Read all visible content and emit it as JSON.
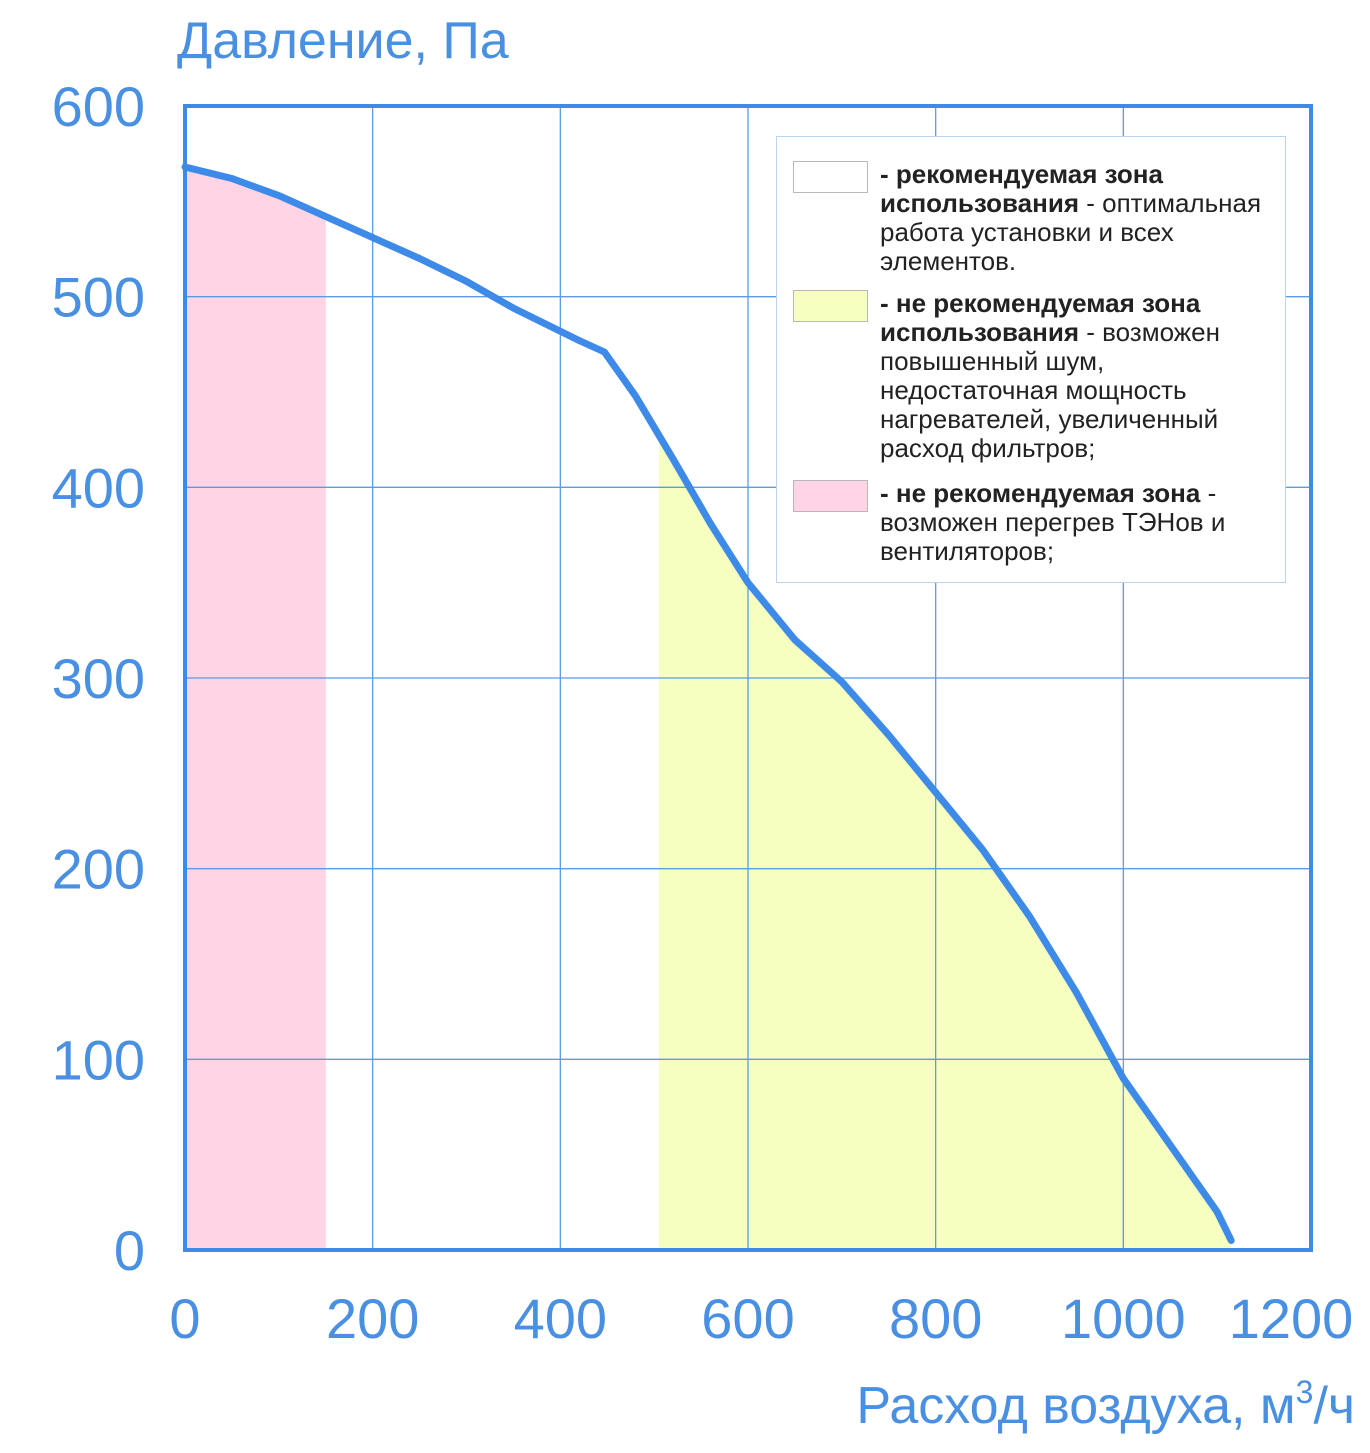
{
  "chart_data": {
    "type": "line",
    "title": "",
    "ylabel": "Давление, Па",
    "xlabel_main": "Расход воздуха, м",
    "xlabel_sup": "3",
    "xlabel_tail": "/ч",
    "xlim": [
      0,
      1200
    ],
    "ylim": [
      0,
      600
    ],
    "grid": true,
    "x_ticks": [
      "0",
      "200",
      "400",
      "600",
      "800",
      "1000",
      "1200"
    ],
    "y_ticks": [
      "0",
      "100",
      "200",
      "300",
      "400",
      "500",
      "600"
    ],
    "series": [
      {
        "x": [
          0,
          50,
          100,
          150,
          200,
          250,
          300,
          350,
          420,
          447,
          480,
          520,
          560,
          600,
          650,
          700,
          750,
          800,
          850,
          900,
          950,
          1000,
          1050,
          1100,
          1115
        ],
        "y": [
          568,
          562,
          553,
          542,
          531,
          520,
          508,
          494,
          477,
          471,
          448,
          415,
          381,
          350,
          320,
          298,
          270,
          240,
          210,
          175,
          135,
          90,
          55,
          20,
          5
        ]
      }
    ],
    "zones": [
      {
        "color": "#ffd5e5",
        "x_from": 0,
        "x_to": 150
      },
      {
        "color": "#f7ffc0",
        "x_from": 505,
        "x_to": 1115
      }
    ],
    "colors": {
      "curve": "#3d8ae8",
      "axis": "#3d8ae8",
      "grid": "#5b9be3",
      "text": "#4a90e2"
    }
  },
  "legend": {
    "items": [
      {
        "swatch_color": "#ffffff",
        "bold": "- рекомендуемая зона использования",
        "text": " - оптимальная работа установки и всех элементов."
      },
      {
        "swatch_color": "#f7ffc0",
        "bold": "- не рекомендуемая зона использования",
        "text": " - возможен повышенный шум, недостаточная мощность нагревателей, увеличенный расход фильтров;"
      },
      {
        "swatch_color": "#ffd5e5",
        "bold": "- не рекомендуемая зона",
        "text": " - возможен перегрев ТЭНов и вентиляторов;"
      }
    ]
  }
}
